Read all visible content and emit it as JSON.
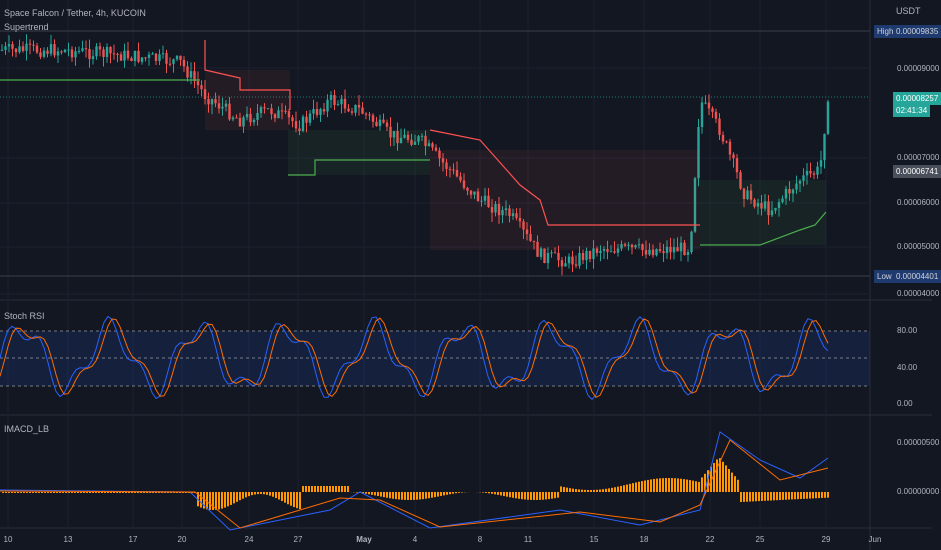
{
  "header": {
    "title": "Space Falcon / Tether, 4h, KUCOIN",
    "currency": "USDT",
    "indicator_main": "Supertrend"
  },
  "price_axis": {
    "ticks": [
      "0.00009000",
      "0.00007000",
      "0.00006000",
      "0.00005000",
      "0.00004000"
    ],
    "high_label": "High",
    "high_value": "0.00009835",
    "low_label": "Low",
    "low_value": "0.00004401",
    "current_price": "0.00008257",
    "countdown": "02:41:34",
    "supertrend_value": "0.00006741"
  },
  "stoch_rsi": {
    "title": "Stoch RSI",
    "ticks": [
      "80.00",
      "40.00",
      "0.00"
    ]
  },
  "imacd": {
    "title": "IMACD_LB",
    "ticks": [
      "0.00000500",
      "0.00000000"
    ]
  },
  "time_axis": {
    "labels": [
      "10",
      "13",
      "17",
      "20",
      "24",
      "27",
      "May",
      "4",
      "8",
      "11",
      "15",
      "18",
      "22",
      "25",
      "29",
      "Jun"
    ]
  },
  "colors": {
    "background": "#131722",
    "up_candle": "#26a69a",
    "down_candle": "#ef5350",
    "supertrend_up": "#4caf50",
    "supertrend_down": "#ff5252",
    "stoch_k": "#2962ff",
    "stoch_d": "#ff6d00",
    "macd_hist": "#ff9800"
  }
}
